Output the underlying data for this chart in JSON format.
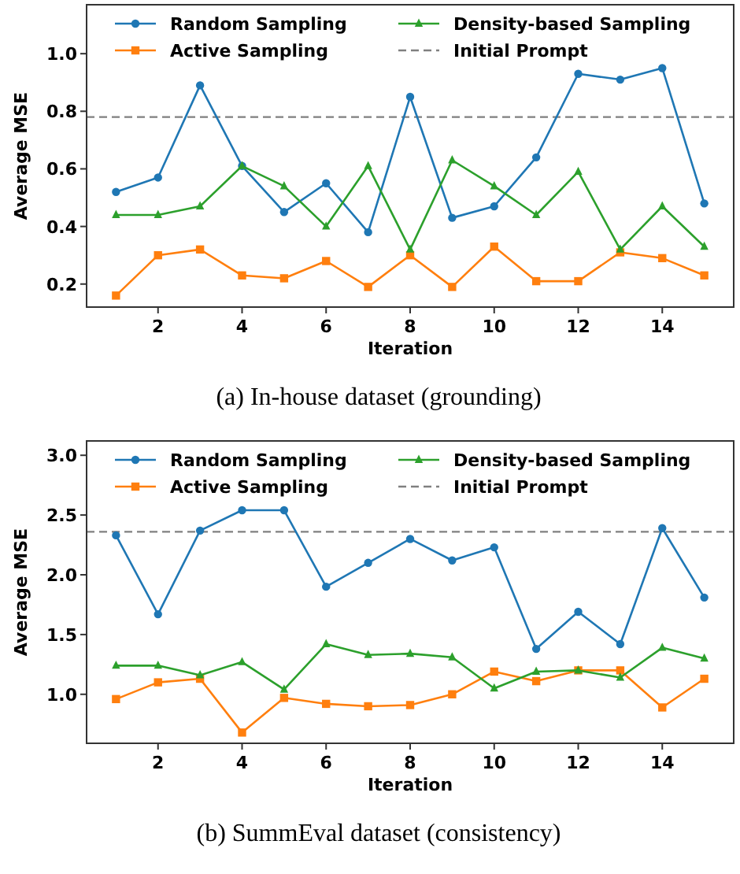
{
  "chart_data": [
    {
      "type": "line",
      "xlabel": "Iteration",
      "ylabel": "Average MSE",
      "annotations": [
        "(a) In-house dataset (grounding)"
      ],
      "x": [
        1,
        2,
        3,
        4,
        5,
        6,
        7,
        8,
        9,
        10,
        11,
        12,
        13,
        14,
        15
      ],
      "xlim": [
        0.3,
        15.7
      ],
      "xticks": [
        2,
        4,
        6,
        8,
        10,
        12,
        14
      ],
      "ylim": [
        0.12,
        1.17
      ],
      "yticks": [
        0.2,
        0.4,
        0.6,
        0.8,
        {
          "value": 1.0,
          "label": "1.0"
        }
      ],
      "grid": false,
      "legend": "top",
      "series": [
        {
          "name": "Random Sampling",
          "color": "#1f77b4",
          "marker": "circle",
          "values": [
            0.52,
            0.57,
            0.89,
            0.61,
            0.45,
            0.55,
            0.38,
            0.85,
            0.43,
            0.47,
            0.64,
            0.93,
            0.91,
            0.95,
            0.48
          ]
        },
        {
          "name": "Active Sampling",
          "color": "#ff7f0e",
          "marker": "square",
          "values": [
            0.16,
            0.3,
            0.32,
            0.23,
            0.22,
            0.28,
            0.19,
            0.3,
            0.19,
            0.33,
            0.21,
            0.21,
            0.31,
            0.29,
            0.23
          ]
        },
        {
          "name": "Density-based Sampling",
          "color": "#2ca02c",
          "marker": "triangle",
          "values": [
            0.44,
            0.44,
            0.47,
            0.61,
            0.54,
            0.4,
            0.61,
            0.32,
            0.63,
            0.54,
            0.44,
            0.59,
            0.32,
            0.47,
            0.33
          ]
        }
      ],
      "ref_lines": [
        {
          "axis": "y",
          "value": 0.78,
          "label": "Initial Prompt",
          "color": "#808080",
          "line_style": "dashed"
        }
      ]
    },
    {
      "type": "line",
      "xlabel": "Iteration",
      "ylabel": "Average MSE",
      "annotations": [
        "(b) SummEval dataset (consistency)"
      ],
      "x": [
        1,
        2,
        3,
        4,
        5,
        6,
        7,
        8,
        9,
        10,
        11,
        12,
        13,
        14,
        15
      ],
      "xlim": [
        0.3,
        15.7
      ],
      "xticks": [
        2,
        4,
        6,
        8,
        10,
        12,
        14
      ],
      "ylim": [
        0.59,
        3.12
      ],
      "yticks": [
        {
          "value": 1.0,
          "label": "1.0"
        },
        {
          "value": 1.5,
          "label": "1.5"
        },
        {
          "value": 2.0,
          "label": "2.0"
        },
        {
          "value": 2.5,
          "label": "2.5"
        },
        {
          "value": 3.0,
          "label": "3.0"
        }
      ],
      "grid": false,
      "legend": "top",
      "series": [
        {
          "name": "Random Sampling",
          "color": "#1f77b4",
          "marker": "circle",
          "values": [
            2.33,
            1.67,
            2.37,
            2.54,
            2.54,
            1.9,
            2.1,
            2.3,
            2.12,
            2.23,
            1.38,
            1.69,
            1.42,
            2.39,
            1.81
          ]
        },
        {
          "name": "Active Sampling",
          "color": "#ff7f0e",
          "marker": "square",
          "values": [
            0.96,
            1.1,
            1.13,
            0.68,
            0.97,
            0.92,
            0.9,
            0.91,
            1.0,
            1.19,
            1.11,
            1.2,
            1.2,
            0.89,
            1.13
          ]
        },
        {
          "name": "Density-based Sampling",
          "color": "#2ca02c",
          "marker": "triangle",
          "values": [
            1.24,
            1.24,
            1.16,
            1.27,
            1.04,
            1.42,
            1.33,
            1.34,
            1.31,
            1.05,
            1.19,
            1.2,
            1.14,
            1.39,
            1.3
          ]
        }
      ],
      "ref_lines": [
        {
          "axis": "y",
          "value": 2.36,
          "label": "Initial Prompt",
          "color": "#808080",
          "line_style": "dashed"
        }
      ]
    }
  ]
}
